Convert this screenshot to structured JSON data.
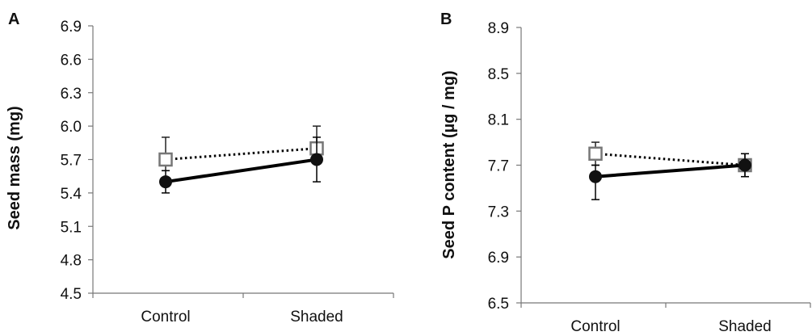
{
  "chart_data": [
    {
      "panel": "A",
      "type": "line",
      "ylabel": "Seed mass (mg)",
      "xlabel": "",
      "categories": [
        "Control",
        "Shaded"
      ],
      "ylim": [
        4.5,
        6.9
      ],
      "yticks": [
        "4.5",
        "4.8",
        "5.1",
        "5.4",
        "5.7",
        "6.0",
        "6.3",
        "6.6",
        "6.9"
      ],
      "grid": false,
      "series": [
        {
          "marker": "open-square",
          "line": "dotted",
          "values": [
            5.7,
            5.8
          ],
          "err_low": [
            5.6,
            5.7
          ],
          "err_high": [
            5.9,
            6.0
          ]
        },
        {
          "marker": "filled-circle",
          "line": "solid",
          "values": [
            5.5,
            5.7
          ],
          "err_low": [
            5.4,
            5.5
          ],
          "err_high": [
            5.6,
            5.9
          ]
        }
      ]
    },
    {
      "panel": "B",
      "type": "line",
      "ylabel": "Seed P content (µg / mg)",
      "xlabel": "",
      "categories": [
        "Control",
        "Shaded"
      ],
      "ylim": [
        6.5,
        8.9
      ],
      "yticks": [
        "6.5",
        "6.9",
        "7.3",
        "7.7",
        "8.1",
        "8.5",
        "8.9"
      ],
      "grid": false,
      "series": [
        {
          "marker": "open-square",
          "line": "dotted",
          "values": [
            7.8,
            7.7
          ],
          "err_low": [
            7.7,
            7.6
          ],
          "err_high": [
            7.9,
            7.8
          ]
        },
        {
          "marker": "filled-circle",
          "line": "solid",
          "values": [
            7.6,
            7.7
          ],
          "err_low": [
            7.4,
            7.6
          ],
          "err_high": [
            7.7,
            7.8
          ]
        }
      ]
    }
  ]
}
